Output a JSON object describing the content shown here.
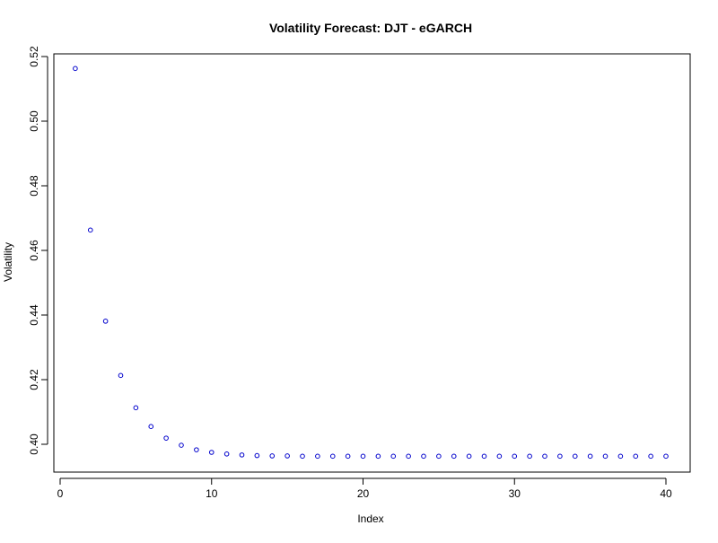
{
  "chart_data": {
    "type": "scatter",
    "title": "Volatility Forecast: DJT - eGARCH",
    "xlabel": "Index",
    "ylabel": "Volatility",
    "xlim": [
      0,
      40
    ],
    "ylim": [
      0.39,
      0.52
    ],
    "xticks": [
      0,
      10,
      20,
      30,
      40
    ],
    "xtick_labels": [
      "0",
      "10",
      "20",
      "30",
      "40"
    ],
    "yticks": [
      0.4,
      0.42,
      0.44,
      0.46,
      0.48,
      0.5,
      0.52
    ],
    "ytick_labels": [
      "0.40",
      "0.42",
      "0.44",
      "0.46",
      "0.48",
      "0.50",
      "0.52"
    ],
    "grid": false,
    "marker": "open-circle",
    "color": "#0000cc",
    "series": [
      {
        "x": [
          1,
          2,
          3,
          4,
          5,
          6,
          7,
          8,
          9,
          10,
          11,
          12,
          13,
          14,
          15,
          16,
          17,
          18,
          19,
          20,
          21,
          22,
          23,
          24,
          25,
          26,
          27,
          28,
          29,
          30,
          31,
          32,
          33,
          34,
          35,
          36,
          37,
          38,
          39,
          40
        ],
        "values": [
          0.5163,
          0.4663,
          0.4381,
          0.4213,
          0.4113,
          0.4055,
          0.4019,
          0.3997,
          0.3983,
          0.3975,
          0.397,
          0.3967,
          0.3965,
          0.3964,
          0.3964,
          0.3963,
          0.3963,
          0.3963,
          0.3963,
          0.3963,
          0.3963,
          0.3963,
          0.3963,
          0.3963,
          0.3963,
          0.3963,
          0.3963,
          0.3963,
          0.3963,
          0.3963,
          0.3963,
          0.3963,
          0.3963,
          0.3963,
          0.3963,
          0.3963,
          0.3963,
          0.3963,
          0.3963,
          0.3963
        ]
      }
    ]
  }
}
